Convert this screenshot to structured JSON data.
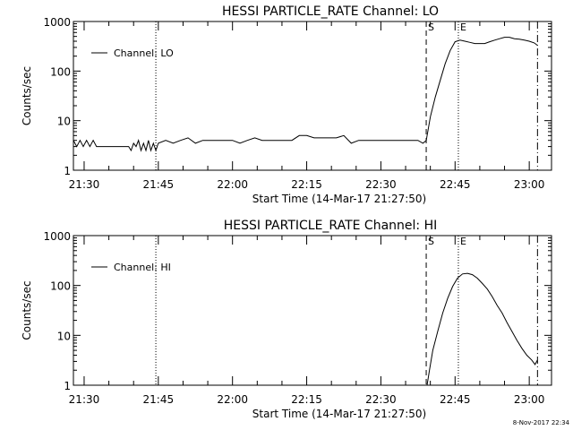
{
  "chart_data": [
    {
      "type": "line",
      "title": "HESSI PARTICLE_RATE Channel: LO",
      "xlabel": "Start Time (14-Mar-17 21:27:50)",
      "ylabel": "Counts/sec",
      "yscale": "log",
      "ylim": [
        1,
        1000
      ],
      "xlim": [
        "21:27:50",
        "23:04:30"
      ],
      "xticks": [
        "21:30",
        "21:45",
        "22:00",
        "22:15",
        "22:30",
        "22:45",
        "23:00"
      ],
      "yticks": [
        "1",
        "10",
        "100",
        "1000"
      ],
      "legend": "top-left",
      "markers": [
        {
          "time": "21:44:30",
          "style": "dotted",
          "label": ""
        },
        {
          "time": "22:39:10",
          "style": "dashed",
          "label": "S"
        },
        {
          "time": "22:45:40",
          "style": "dotted",
          "label": "E"
        },
        {
          "time": "23:01:40",
          "style": "dash-dot",
          "label": ""
        }
      ],
      "series": [
        {
          "name": "Channel: LO",
          "x": [
            "21:27:50",
            "21:28:30",
            "21:29:10",
            "21:29:50",
            "21:30:30",
            "21:31:10",
            "21:31:50",
            "21:32:30",
            "21:33:10",
            "21:33:50",
            "21:34:30",
            "21:35:10",
            "21:36:00",
            "21:37:00",
            "21:38:00",
            "21:39:00",
            "21:39:30",
            "21:40:00",
            "21:40:30",
            "21:41:00",
            "21:41:30",
            "21:42:00",
            "21:42:30",
            "21:43:00",
            "21:43:30",
            "21:44:00",
            "21:44:30",
            "21:45:00",
            "21:46:30",
            "21:48:00",
            "21:49:30",
            "21:51:00",
            "21:52:30",
            "21:54:00",
            "21:55:30",
            "21:57:00",
            "21:58:30",
            "22:00:00",
            "22:01:30",
            "22:03:00",
            "22:04:30",
            "22:06:00",
            "22:07:30",
            "22:09:00",
            "22:10:30",
            "22:12:00",
            "22:13:30",
            "22:15:00",
            "22:16:30",
            "22:18:00",
            "22:19:30",
            "22:21:00",
            "22:22:30",
            "22:24:00",
            "22:25:30",
            "22:27:00",
            "22:28:30",
            "22:30:00",
            "22:31:30",
            "22:33:00",
            "22:34:30",
            "22:36:00",
            "22:37:30",
            "22:38:30",
            "22:39:10",
            "22:40:00",
            "22:41:00",
            "22:42:00",
            "22:43:00",
            "22:44:00",
            "22:45:00",
            "22:46:00",
            "22:47:00",
            "22:48:00",
            "22:49:00",
            "22:50:00",
            "22:51:00",
            "22:52:00",
            "22:53:00",
            "22:54:00",
            "22:55:00",
            "22:56:00",
            "22:57:00",
            "22:58:00",
            "22:59:00",
            "23:00:00",
            "23:01:00",
            "23:01:40"
          ],
          "y": [
            4,
            3,
            4,
            3,
            4,
            3,
            4,
            3,
            3,
            3,
            3,
            3,
            3,
            3,
            3,
            3,
            2.5,
            3.5,
            3,
            4,
            2.5,
            3.5,
            2.5,
            4,
            2.5,
            3.5,
            2.5,
            3.5,
            4,
            3.5,
            4,
            4.5,
            3.5,
            4,
            4,
            4,
            4,
            4,
            3.5,
            4,
            4.5,
            4,
            4,
            4,
            4,
            4,
            5,
            5,
            4.5,
            4.5,
            4.5,
            4.5,
            5,
            3.5,
            4,
            4,
            4,
            4,
            4,
            4,
            4,
            4,
            4,
            3.5,
            4,
            12,
            30,
            65,
            140,
            260,
            390,
            420,
            400,
            380,
            360,
            360,
            360,
            390,
            420,
            450,
            480,
            480,
            450,
            440,
            420,
            400,
            370,
            330
          ]
        }
      ]
    },
    {
      "type": "line",
      "title": "HESSI PARTICLE_RATE Channel: HI",
      "xlabel": "Start Time (14-Mar-17 21:27:50)",
      "ylabel": "Counts/sec",
      "yscale": "log",
      "ylim": [
        1,
        1000
      ],
      "xlim": [
        "21:27:50",
        "23:04:30"
      ],
      "xticks": [
        "21:30",
        "21:45",
        "22:00",
        "22:15",
        "22:30",
        "22:45",
        "23:00"
      ],
      "yticks": [
        "1",
        "10",
        "100",
        "1000"
      ],
      "legend": "top-left",
      "markers": [
        {
          "time": "21:44:30",
          "style": "dotted",
          "label": ""
        },
        {
          "time": "22:39:10",
          "style": "dashed",
          "label": "S"
        },
        {
          "time": "22:45:40",
          "style": "dotted",
          "label": "E"
        },
        {
          "time": "23:01:40",
          "style": "dash-dot",
          "label": ""
        }
      ],
      "series": [
        {
          "name": "Channel: HI",
          "x": [
            "22:39:20",
            "22:39:50",
            "22:40:30",
            "22:41:30",
            "22:42:30",
            "22:43:30",
            "22:44:30",
            "22:45:30",
            "22:46:30",
            "22:47:30",
            "22:48:30",
            "22:49:30",
            "22:50:30",
            "22:51:30",
            "22:52:30",
            "22:53:30",
            "22:54:30",
            "22:55:30",
            "22:56:30",
            "22:57:30",
            "22:58:30",
            "22:59:30",
            "23:00:30",
            "23:01:10",
            "23:01:40"
          ],
          "y": [
            1,
            2,
            5,
            12,
            28,
            55,
            95,
            140,
            170,
            175,
            165,
            140,
            110,
            85,
            60,
            40,
            28,
            18,
            12,
            8,
            5.5,
            4,
            3.2,
            2.6,
            3.2
          ]
        }
      ]
    }
  ],
  "footer": {
    "timestamp": "8-Nov-2017 22:34"
  }
}
